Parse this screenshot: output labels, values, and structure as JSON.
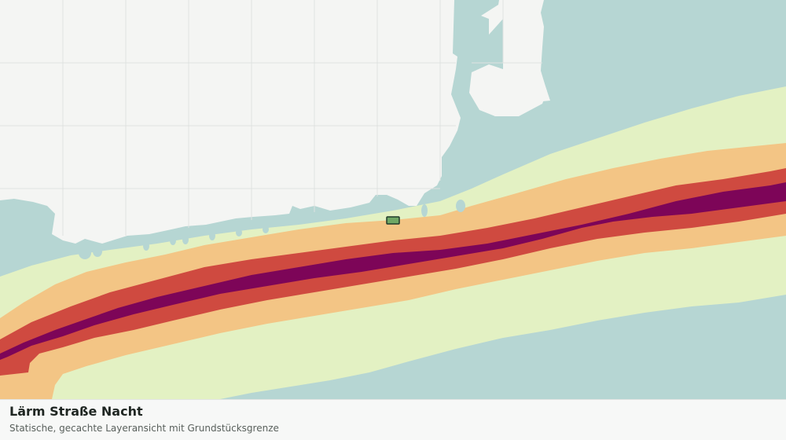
{
  "map": {
    "layer_title": "Lärm Straße Nacht",
    "subtitle": "Statische, gecachte Layeransicht mit Grundstücksgrenze",
    "noise_band_colors": [
      "#e3f1c3",
      "#f3c585",
      "#cf4a40",
      "#7d0558"
    ],
    "water_color": "#b6d6d3",
    "land_color": "#f4f5f3",
    "grid_color": "#dfe2e0",
    "parcel_color": "#6fa865",
    "parcel_outline_color": "#1f3a2a"
  }
}
